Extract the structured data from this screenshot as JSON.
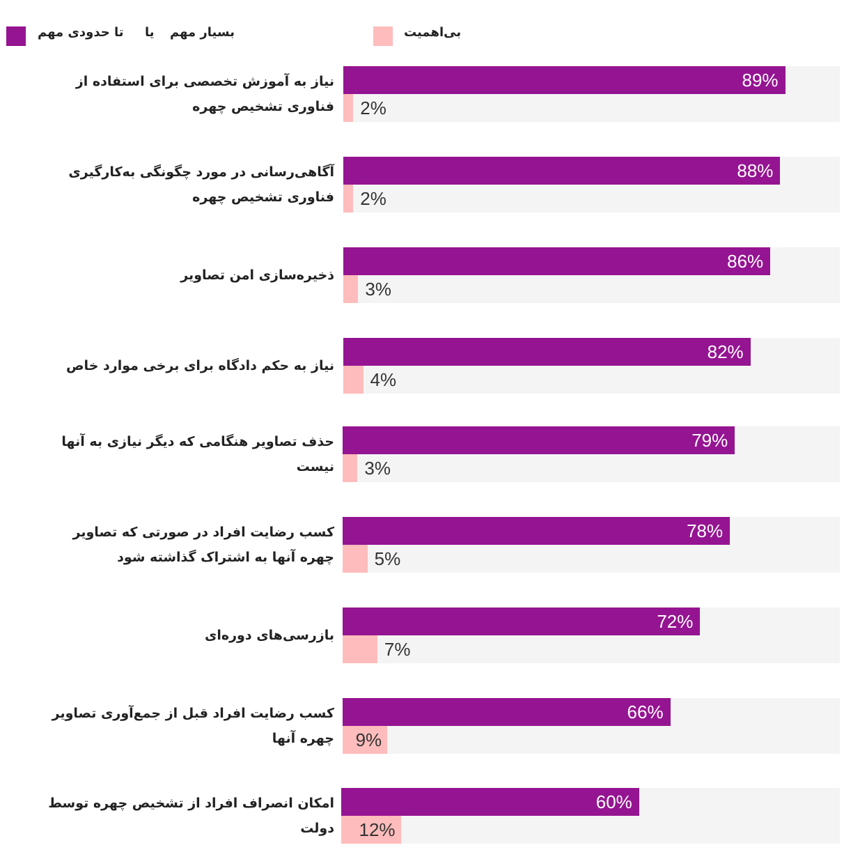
{
  "chart_data": {
    "type": "bar",
    "orientation": "horizontal",
    "legend_position": "top",
    "grid": false,
    "xlim": [
      0,
      100
    ],
    "series": [
      {
        "key": "important",
        "name_parts": [
          "بسیار مهم",
          "یا",
          "تا حدودی مهم"
        ],
        "color": "#951492",
        "values": [
          89,
          88,
          86,
          82,
          79,
          78,
          72,
          66,
          60
        ],
        "labels": [
          "89%",
          "88%",
          "86%",
          "82%",
          "79%",
          "78%",
          "72%",
          "66%",
          "60%"
        ]
      },
      {
        "key": "unimportant",
        "name": "بی‌اهمیت",
        "color": "#ffbcbc",
        "values": [
          2,
          2,
          3,
          4,
          3,
          5,
          7,
          9,
          12
        ],
        "labels": [
          "2%",
          "2%",
          "3%",
          "4%",
          "3%",
          "5%",
          "7%",
          "9%",
          "12%"
        ]
      }
    ],
    "categories": [
      "نیاز به آموزش تخصصی برای استفاده از فناوری تشخیص چهره",
      "آگاهی‌رسانی در مورد چگونگی به‌کارگیری فناوری تشخیص چهره",
      "ذخیره‌سازی امن تصاویر",
      "نیاز به حکم دادگاه برای برخی موارد خاص",
      "حذف تصاویر هنگامی که دیگر نیازی به آنها نیست",
      "کسب رضایت افراد در صورتی که تصاویر چهره آنها به اشتراک گذاشته شود",
      "بازرسی‌های دوره‌ای",
      "کسب رضایت افراد قبل از جمع‌آوری تصاویر چهره آنها",
      "امکان انصراف افراد از تشخیص چهره توسط دولت"
    ]
  }
}
